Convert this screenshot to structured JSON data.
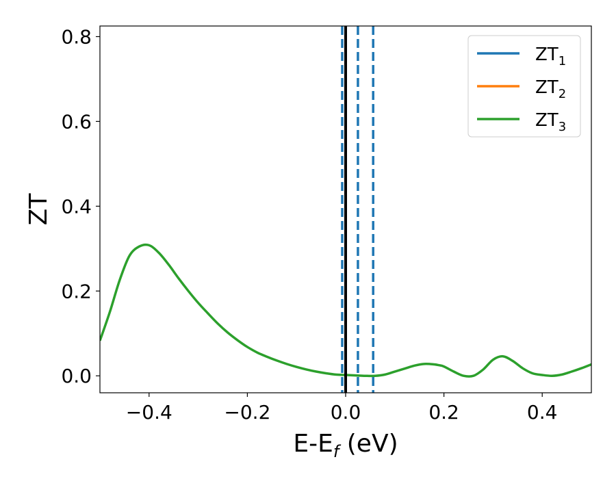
{
  "chart_data": {
    "type": "line",
    "xlabel_main": "E-E",
    "xlabel_sub": "f",
    "xlabel_unit": " (eV)",
    "ylabel": "ZT",
    "xlim": [
      -0.5,
      0.5
    ],
    "ylim": [
      -0.04,
      0.825
    ],
    "xticks": [
      -0.4,
      -0.2,
      0.0,
      0.2,
      0.4
    ],
    "xtick_labels": [
      "−0.4",
      "−0.2",
      "0.0",
      "0.2",
      "0.4"
    ],
    "yticks": [
      0.0,
      0.2,
      0.4,
      0.6,
      0.8
    ],
    "ytick_labels": [
      "0.0",
      "0.2",
      "0.4",
      "0.6",
      "0.8"
    ],
    "grid": false,
    "legend_position": "top-right",
    "legend": [
      {
        "base": "ZT",
        "sub": "1",
        "color": "#1f77b4"
      },
      {
        "base": "ZT",
        "sub": "2",
        "color": "#ff7f0e"
      },
      {
        "base": "ZT",
        "sub": "3",
        "color": "#2ca02c"
      }
    ],
    "vertical_lines": [
      {
        "x": 0.0,
        "style": "solid",
        "color": "#000000"
      },
      {
        "x": -0.007,
        "style": "dashed",
        "color": "#1f77b4"
      },
      {
        "x": 0.025,
        "style": "dashed",
        "color": "#1f77b4"
      },
      {
        "x": 0.056,
        "style": "dashed",
        "color": "#1f77b4"
      }
    ],
    "series": [
      {
        "name": "ZT_3",
        "color": "#2ca02c",
        "x": [
          -0.5,
          -0.48,
          -0.46,
          -0.44,
          -0.42,
          -0.4,
          -0.38,
          -0.36,
          -0.34,
          -0.32,
          -0.3,
          -0.28,
          -0.26,
          -0.24,
          -0.22,
          -0.2,
          -0.18,
          -0.16,
          -0.14,
          -0.12,
          -0.1,
          -0.08,
          -0.06,
          -0.04,
          -0.02,
          0.0,
          0.02,
          0.04,
          0.06,
          0.08,
          0.1,
          0.12,
          0.14,
          0.16,
          0.18,
          0.19,
          0.2,
          0.22,
          0.24,
          0.26,
          0.28,
          0.3,
          0.32,
          0.34,
          0.36,
          0.38,
          0.4,
          0.42,
          0.44,
          0.46,
          0.48,
          0.5
        ],
        "y": [
          0.083,
          0.15,
          0.225,
          0.283,
          0.305,
          0.308,
          0.29,
          0.262,
          0.23,
          0.2,
          0.172,
          0.147,
          0.123,
          0.102,
          0.084,
          0.068,
          0.055,
          0.045,
          0.036,
          0.028,
          0.021,
          0.015,
          0.01,
          0.006,
          0.003,
          0.002,
          0.001,
          0.0,
          0.0,
          0.003,
          0.01,
          0.017,
          0.024,
          0.028,
          0.027,
          0.025,
          0.022,
          0.01,
          0.0,
          0.0,
          0.015,
          0.038,
          0.046,
          0.035,
          0.018,
          0.006,
          0.002,
          0.0,
          0.003,
          0.01,
          0.018,
          0.027
        ]
      }
    ]
  }
}
